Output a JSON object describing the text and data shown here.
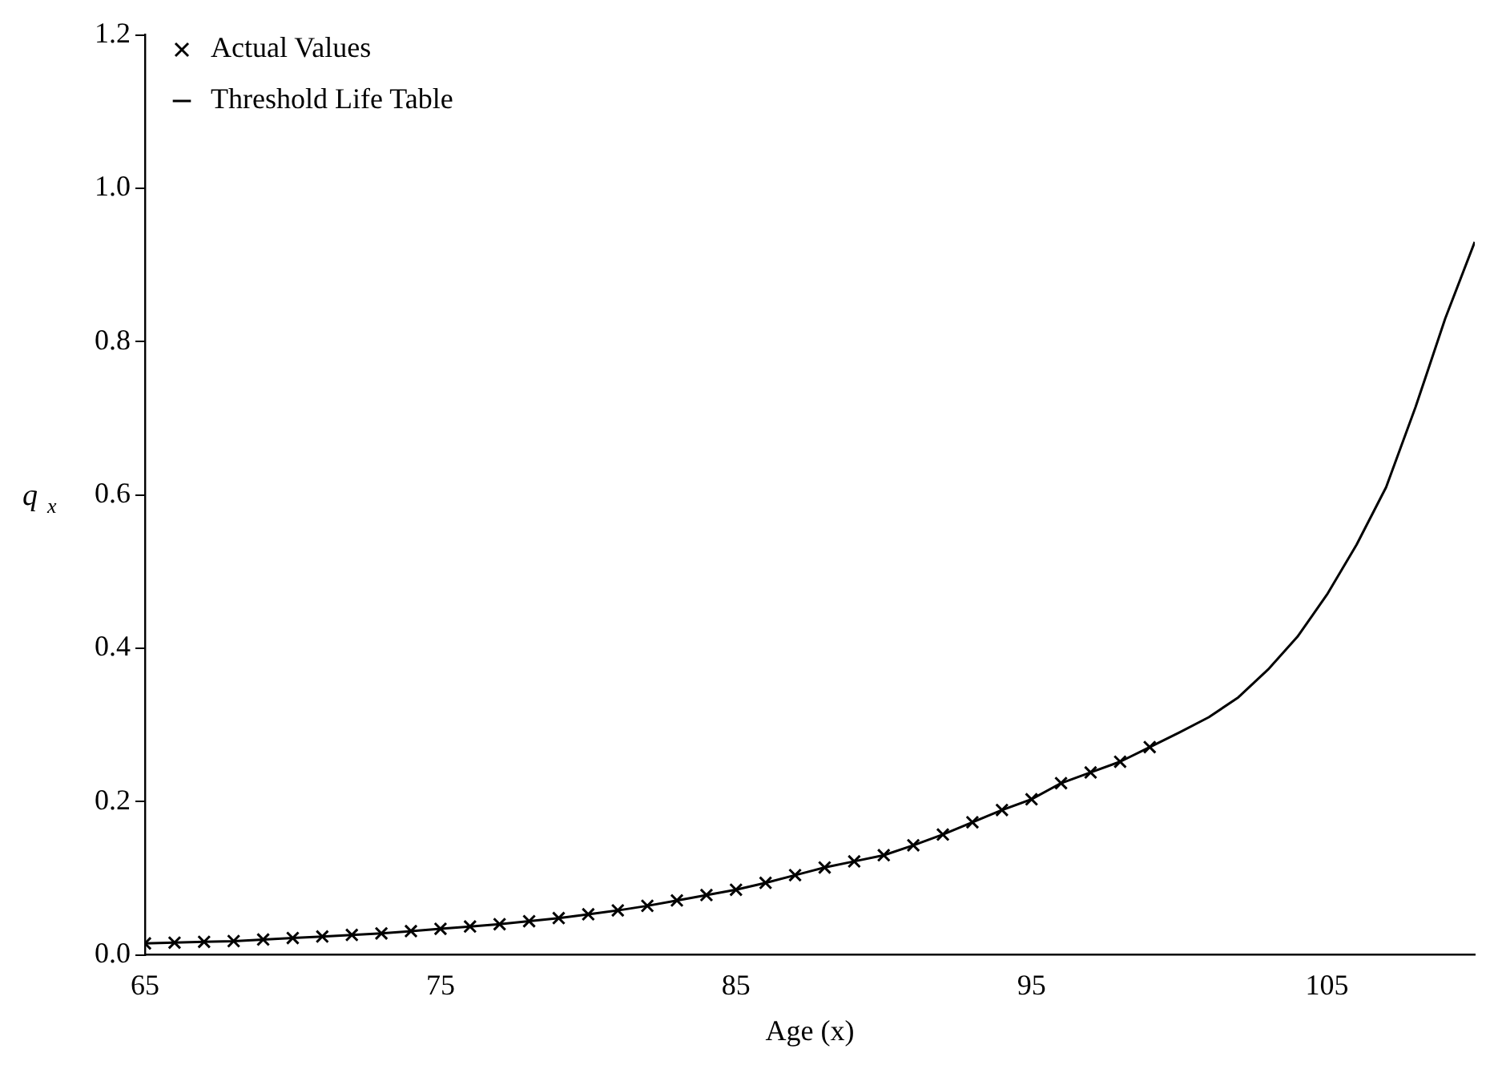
{
  "chart_data": {
    "type": "scatter",
    "xlabel": "Age (x)",
    "ylabel": "q$_{x}$",
    "xlim": [
      65,
      110
    ],
    "ylim": [
      0,
      1.2
    ],
    "xticks": [
      65,
      75,
      85,
      95,
      105
    ],
    "yticks": [
      {
        "value": 0,
        "label": "0.0"
      },
      {
        "value": 0.2,
        "label": "0.2"
      },
      {
        "value": 0.4,
        "label": "0.4"
      },
      {
        "value": 0.6,
        "label": "0.6"
      },
      {
        "value": 0.8,
        "label": "0.8"
      },
      {
        "value": 1,
        "label": "1.0"
      },
      {
        "value": 1.2,
        "label": "1.2"
      }
    ],
    "grid": false,
    "legend": "top left",
    "series": [
      {
        "name": "Actual Values",
        "marker": "cross",
        "color": "#000000",
        "x": [
          65,
          66,
          67,
          68,
          69,
          70,
          71,
          72,
          73,
          74,
          75,
          76,
          77,
          78,
          79,
          80,
          81,
          82,
          83,
          84,
          85,
          86,
          87,
          88,
          89,
          90,
          91,
          92,
          93,
          94,
          95,
          96,
          97,
          98,
          99
        ],
        "values": [
          0.015,
          0.016,
          0.017,
          0.018,
          0.02,
          0.022,
          0.024,
          0.026,
          0.028,
          0.031,
          0.034,
          0.037,
          0.04,
          0.044,
          0.048,
          0.053,
          0.058,
          0.064,
          0.071,
          0.078,
          0.085,
          0.094,
          0.104,
          0.114,
          0.122,
          0.13,
          0.143,
          0.157,
          0.173,
          0.189,
          0.203,
          0.224,
          0.238,
          0.252,
          0.271
        ]
      },
      {
        "name": "Threshold Life Table",
        "type": "line",
        "marker": "none",
        "line_style": "solid",
        "color": "#000000",
        "x": [
          65,
          66,
          67,
          68,
          69,
          70,
          71,
          72,
          73,
          74,
          75,
          76,
          77,
          78,
          79,
          80,
          81,
          82,
          83,
          84,
          85,
          86,
          87,
          88,
          89,
          90,
          91,
          92,
          93,
          94,
          95,
          96,
          97,
          98,
          99,
          100,
          101,
          102,
          103,
          104,
          105,
          106,
          107,
          108,
          109,
          110
        ],
        "values": [
          0.015,
          0.016,
          0.017,
          0.018,
          0.02,
          0.022,
          0.024,
          0.026,
          0.028,
          0.031,
          0.034,
          0.037,
          0.04,
          0.044,
          0.048,
          0.053,
          0.058,
          0.064,
          0.071,
          0.078,
          0.085,
          0.094,
          0.104,
          0.114,
          0.122,
          0.13,
          0.143,
          0.157,
          0.173,
          0.189,
          0.203,
          0.224,
          0.238,
          0.252,
          0.271,
          0.29,
          0.31,
          0.336,
          0.372,
          0.415,
          0.47,
          0.535,
          0.61,
          0.715,
          0.83,
          0.93
        ]
      }
    ]
  }
}
